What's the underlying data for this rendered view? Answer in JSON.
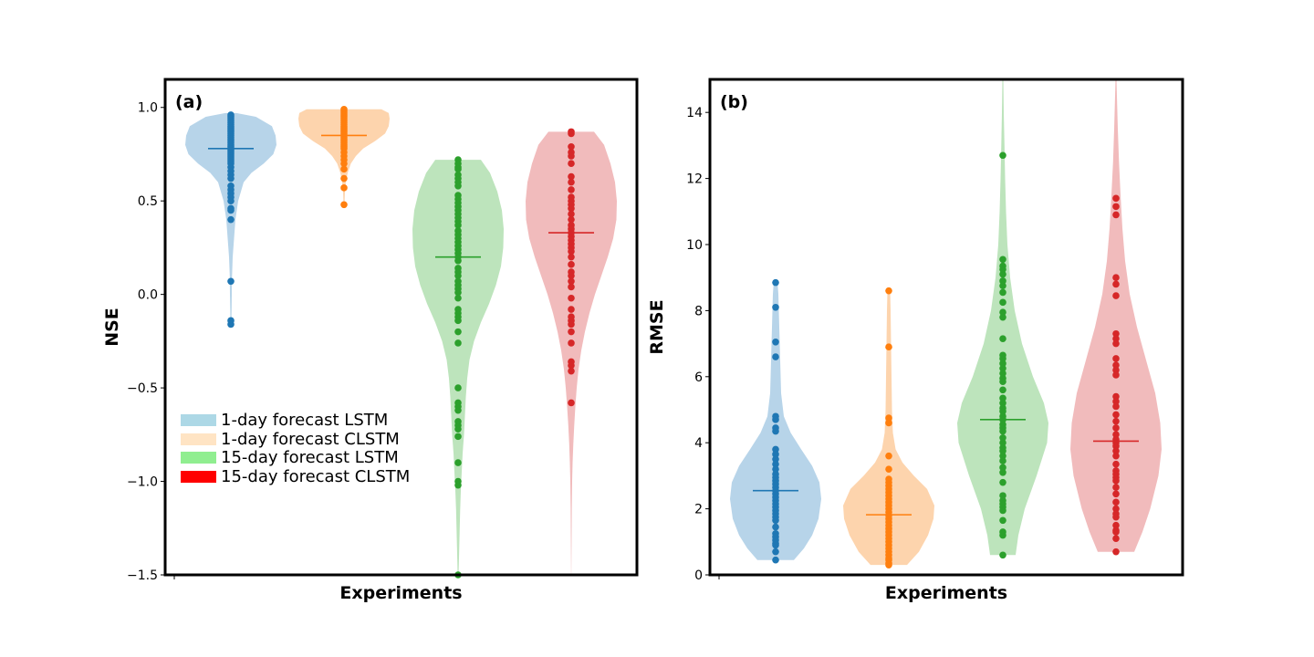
{
  "chart_data": [
    {
      "type": "violin",
      "panel_label": "(a)",
      "xlabel": "Experiments",
      "ylabel": "NSE",
      "ylim": [
        -1.5,
        1.15
      ],
      "yticks": [
        {
          "value": 1.0,
          "label": "1.0"
        },
        {
          "value": 0.5,
          "label": "0.5"
        },
        {
          "value": 0.0,
          "label": "0.0"
        },
        {
          "value": -0.5,
          "label": "−0.5"
        },
        {
          "value": -1.0,
          "label": "−1.0"
        },
        {
          "value": -1.5,
          "label": "−1.5"
        }
      ],
      "legend": {
        "placement": "lower-left",
        "entries": [
          {
            "label": "1-day forecast LSTM",
            "color": "#add8e6"
          },
          {
            "label": "1-day forecast CLSTM",
            "color": "#ffe4c4"
          },
          {
            "label": "15-day forecast LSTM",
            "color": "#90ee90"
          },
          {
            "label": "15-day forecast CLSTM",
            "color": "#ff0000"
          }
        ]
      },
      "series": [
        {
          "color": "#1f77b4",
          "fill": "#b7d4e9",
          "mean": 0.78,
          "values": [
            0.96,
            0.95,
            0.94,
            0.93,
            0.92,
            0.91,
            0.9,
            0.89,
            0.88,
            0.87,
            0.86,
            0.85,
            0.84,
            0.83,
            0.82,
            0.81,
            0.8,
            0.79,
            0.78,
            0.77,
            0.76,
            0.75,
            0.74,
            0.73,
            0.72,
            0.71,
            0.7,
            0.68,
            0.66,
            0.64,
            0.62,
            0.58,
            0.56,
            0.54,
            0.52,
            0.5,
            0.46,
            0.45,
            0.4,
            0.07,
            -0.14,
            -0.16
          ],
          "violin": [
            [
              0.97,
              0.12
            ],
            [
              0.95,
              0.55
            ],
            [
              0.9,
              0.9
            ],
            [
              0.85,
              0.98
            ],
            [
              0.8,
              1.0
            ],
            [
              0.75,
              0.93
            ],
            [
              0.7,
              0.72
            ],
            [
              0.65,
              0.45
            ],
            [
              0.6,
              0.28
            ],
            [
              0.5,
              0.16
            ],
            [
              0.4,
              0.1
            ],
            [
              0.3,
              0.07
            ],
            [
              0.2,
              0.04
            ],
            [
              0.1,
              0.025
            ],
            [
              0.0,
              0.02
            ],
            [
              -0.08,
              0.015
            ],
            [
              -0.16,
              0.01
            ]
          ]
        },
        {
          "color": "#ff7f0e",
          "fill": "#fdd4ad",
          "mean": 0.85,
          "values": [
            0.99,
            0.98,
            0.97,
            0.96,
            0.95,
            0.94,
            0.93,
            0.92,
            0.91,
            0.9,
            0.89,
            0.88,
            0.87,
            0.86,
            0.85,
            0.84,
            0.83,
            0.82,
            0.81,
            0.8,
            0.79,
            0.78,
            0.76,
            0.74,
            0.72,
            0.7,
            0.67,
            0.62,
            0.57,
            0.48
          ],
          "violin": [
            [
              0.99,
              0.82
            ],
            [
              0.97,
              0.98
            ],
            [
              0.94,
              1.0
            ],
            [
              0.9,
              0.98
            ],
            [
              0.86,
              0.9
            ],
            [
              0.82,
              0.68
            ],
            [
              0.78,
              0.42
            ],
            [
              0.74,
              0.26
            ],
            [
              0.7,
              0.15
            ],
            [
              0.65,
              0.08
            ],
            [
              0.6,
              0.04
            ],
            [
              0.55,
              0.02
            ],
            [
              0.48,
              0.01
            ]
          ]
        },
        {
          "color": "#2ca02c",
          "fill": "#bde4bc",
          "mean": 0.2,
          "values": [
            0.72,
            0.7,
            0.68,
            0.67,
            0.64,
            0.62,
            0.6,
            0.58,
            0.53,
            0.51,
            0.49,
            0.47,
            0.45,
            0.43,
            0.41,
            0.39,
            0.37,
            0.34,
            0.32,
            0.3,
            0.28,
            0.26,
            0.24,
            0.22,
            0.2,
            0.18,
            0.14,
            0.12,
            0.1,
            0.07,
            0.05,
            0.03,
            0.01,
            -0.02,
            -0.08,
            -0.1,
            -0.12,
            -0.14,
            -0.2,
            -0.26,
            -0.5,
            -0.58,
            -0.6,
            -0.62,
            -0.68,
            -0.7,
            -0.72,
            -0.76,
            -0.9,
            -1.0,
            -1.02,
            -1.5
          ],
          "violin": [
            [
              0.72,
              0.5
            ],
            [
              0.65,
              0.7
            ],
            [
              0.55,
              0.86
            ],
            [
              0.45,
              0.96
            ],
            [
              0.35,
              1.0
            ],
            [
              0.25,
              0.99
            ],
            [
              0.15,
              0.94
            ],
            [
              0.05,
              0.83
            ],
            [
              -0.05,
              0.68
            ],
            [
              -0.15,
              0.5
            ],
            [
              -0.25,
              0.35
            ],
            [
              -0.35,
              0.25
            ],
            [
              -0.45,
              0.2
            ],
            [
              -0.55,
              0.17
            ],
            [
              -0.65,
              0.15
            ],
            [
              -0.75,
              0.13
            ],
            [
              -0.85,
              0.1
            ],
            [
              -0.95,
              0.08
            ],
            [
              -1.05,
              0.06
            ],
            [
              -1.15,
              0.045
            ],
            [
              -1.25,
              0.035
            ],
            [
              -1.35,
              0.025
            ],
            [
              -1.45,
              0.015
            ],
            [
              -1.5,
              0.01
            ]
          ]
        },
        {
          "color": "#d62728",
          "fill": "#f1bbbc",
          "mean": 0.33,
          "values": [
            0.87,
            0.86,
            0.79,
            0.76,
            0.74,
            0.7,
            0.63,
            0.6,
            0.56,
            0.52,
            0.5,
            0.48,
            0.46,
            0.43,
            0.4,
            0.37,
            0.35,
            0.33,
            0.31,
            0.29,
            0.27,
            0.25,
            0.23,
            0.2,
            0.16,
            0.12,
            0.1,
            0.07,
            0.04,
            -0.02,
            -0.08,
            -0.12,
            -0.14,
            -0.16,
            -0.2,
            -0.26,
            -0.36,
            -0.38,
            -0.41,
            -0.58
          ],
          "violin": [
            [
              0.87,
              0.5
            ],
            [
              0.8,
              0.72
            ],
            [
              0.7,
              0.86
            ],
            [
              0.6,
              0.96
            ],
            [
              0.5,
              1.0
            ],
            [
              0.4,
              0.99
            ],
            [
              0.3,
              0.92
            ],
            [
              0.2,
              0.8
            ],
            [
              0.1,
              0.66
            ],
            [
              0.0,
              0.52
            ],
            [
              -0.1,
              0.4
            ],
            [
              -0.2,
              0.3
            ],
            [
              -0.3,
              0.22
            ],
            [
              -0.4,
              0.16
            ],
            [
              -0.5,
              0.12
            ],
            [
              -0.6,
              0.09
            ],
            [
              -0.7,
              0.065
            ],
            [
              -0.8,
              0.045
            ],
            [
              -0.9,
              0.03
            ],
            [
              -1.0,
              0.02
            ],
            [
              -1.15,
              0.012
            ],
            [
              -1.3,
              0.007
            ],
            [
              -1.5,
              0.003
            ]
          ]
        }
      ]
    },
    {
      "type": "violin",
      "panel_label": "(b)",
      "xlabel": "Experiments",
      "ylabel": "RMSE",
      "ylim": [
        0,
        15
      ],
      "yticks": [
        {
          "value": 0,
          "label": "0"
        },
        {
          "value": 2,
          "label": "2"
        },
        {
          "value": 4,
          "label": "4"
        },
        {
          "value": 6,
          "label": "6"
        },
        {
          "value": 8,
          "label": "8"
        },
        {
          "value": 10,
          "label": "10"
        },
        {
          "value": 12,
          "label": "12"
        },
        {
          "value": 14,
          "label": "14"
        }
      ],
      "series": [
        {
          "color": "#1f77b4",
          "fill": "#b7d4e9",
          "mean": 2.55,
          "values": [
            8.85,
            8.1,
            7.05,
            6.6,
            4.8,
            4.7,
            4.45,
            4.35,
            3.8,
            3.65,
            3.5,
            3.35,
            3.2,
            3.05,
            2.95,
            2.85,
            2.75,
            2.65,
            2.55,
            2.45,
            2.35,
            2.25,
            2.15,
            2.05,
            1.95,
            1.85,
            1.75,
            1.65,
            1.45,
            1.25,
            1.15,
            1.05,
            0.95,
            0.9,
            0.7,
            0.45
          ],
          "violin": [
            [
              0.45,
              0.4
            ],
            [
              0.8,
              0.62
            ],
            [
              1.2,
              0.8
            ],
            [
              1.7,
              0.94
            ],
            [
              2.3,
              1.0
            ],
            [
              2.8,
              0.96
            ],
            [
              3.3,
              0.8
            ],
            [
              3.8,
              0.56
            ],
            [
              4.3,
              0.33
            ],
            [
              4.8,
              0.18
            ],
            [
              5.5,
              0.12
            ],
            [
              6.5,
              0.1
            ],
            [
              7.5,
              0.08
            ],
            [
              8.5,
              0.06
            ],
            [
              8.9,
              0.04
            ]
          ]
        },
        {
          "color": "#ff7f0e",
          "fill": "#fdd4ad",
          "mean": 1.82,
          "values": [
            8.6,
            6.9,
            4.75,
            4.6,
            3.6,
            3.2,
            2.9,
            2.8,
            2.7,
            2.6,
            2.5,
            2.4,
            2.3,
            2.2,
            2.1,
            2.0,
            1.9,
            1.8,
            1.7,
            1.6,
            1.5,
            1.4,
            1.3,
            1.2,
            1.1,
            1.0,
            0.9,
            0.8,
            0.7,
            0.6,
            0.5,
            0.45,
            0.35,
            0.3
          ],
          "violin": [
            [
              0.3,
              0.4
            ],
            [
              0.7,
              0.66
            ],
            [
              1.2,
              0.86
            ],
            [
              1.7,
              0.98
            ],
            [
              2.1,
              1.0
            ],
            [
              2.6,
              0.84
            ],
            [
              3.0,
              0.55
            ],
            [
              3.4,
              0.3
            ],
            [
              3.8,
              0.15
            ],
            [
              4.3,
              0.09
            ],
            [
              5.0,
              0.07
            ],
            [
              6.0,
              0.06
            ],
            [
              7.0,
              0.05
            ],
            [
              8.0,
              0.04
            ],
            [
              8.6,
              0.03
            ]
          ]
        },
        {
          "color": "#2ca02c",
          "fill": "#bde4bc",
          "mean": 4.7,
          "values": [
            12.7,
            9.55,
            9.35,
            9.25,
            9.1,
            8.9,
            8.75,
            8.55,
            8.25,
            7.95,
            7.8,
            7.15,
            6.65,
            6.55,
            6.4,
            6.25,
            6.1,
            5.95,
            5.85,
            5.6,
            5.35,
            5.2,
            5.05,
            4.95,
            4.8,
            4.7,
            4.55,
            4.45,
            4.35,
            4.15,
            4.0,
            3.85,
            3.75,
            3.6,
            3.45,
            3.25,
            3.1,
            2.8,
            2.4,
            2.25,
            2.15,
            2.05,
            1.95,
            1.65,
            1.3,
            1.2,
            0.6
          ],
          "violin": [
            [
              0.6,
              0.28
            ],
            [
              1.2,
              0.34
            ],
            [
              2.0,
              0.48
            ],
            [
              3.0,
              0.74
            ],
            [
              4.0,
              0.97
            ],
            [
              4.6,
              1.0
            ],
            [
              5.2,
              0.9
            ],
            [
              6.0,
              0.66
            ],
            [
              7.0,
              0.42
            ],
            [
              8.0,
              0.26
            ],
            [
              9.0,
              0.16
            ],
            [
              10.0,
              0.1
            ],
            [
              11.0,
              0.07
            ],
            [
              12.0,
              0.05
            ],
            [
              13.0,
              0.035
            ],
            [
              14.0,
              0.02
            ],
            [
              15.0,
              0.01
            ]
          ]
        },
        {
          "color": "#d62728",
          "fill": "#f1bbbc",
          "mean": 4.05,
          "values": [
            11.4,
            11.15,
            10.9,
            9.0,
            8.8,
            8.45,
            7.3,
            7.15,
            7.0,
            6.55,
            6.35,
            6.2,
            6.05,
            5.4,
            5.25,
            5.1,
            4.85,
            4.65,
            4.45,
            4.25,
            4.1,
            4.0,
            3.9,
            3.75,
            3.6,
            3.35,
            3.15,
            3.05,
            2.95,
            2.85,
            2.65,
            2.45,
            2.2,
            2.0,
            1.85,
            1.75,
            1.5,
            1.35,
            1.3,
            1.1,
            0.7
          ],
          "violin": [
            [
              0.7,
              0.4
            ],
            [
              1.3,
              0.58
            ],
            [
              2.0,
              0.75
            ],
            [
              3.0,
              0.93
            ],
            [
              3.8,
              1.0
            ],
            [
              4.6,
              0.97
            ],
            [
              5.5,
              0.86
            ],
            [
              6.5,
              0.66
            ],
            [
              7.5,
              0.46
            ],
            [
              8.5,
              0.3
            ],
            [
              9.5,
              0.2
            ],
            [
              10.5,
              0.14
            ],
            [
              11.5,
              0.1
            ],
            [
              12.5,
              0.065
            ],
            [
              13.5,
              0.04
            ],
            [
              14.5,
              0.02
            ],
            [
              15.0,
              0.01
            ]
          ]
        }
      ]
    }
  ]
}
